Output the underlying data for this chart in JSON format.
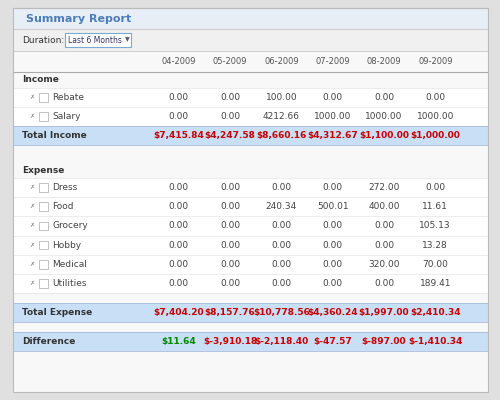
{
  "title": "Summary Report",
  "duration_label": "Duration:",
  "duration_value": "Last 6 Months",
  "months": [
    "04-2009",
    "05-2009",
    "06-2009",
    "07-2009",
    "08-2009",
    "09-2009"
  ],
  "income_items": [
    {
      "name": "Rebate",
      "values": [
        "0.00",
        "0.00",
        "100.00",
        "0.00",
        "0.00",
        "0.00"
      ]
    },
    {
      "name": "Salary",
      "values": [
        "0.00",
        "0.00",
        "4212.66",
        "1000.00",
        "1000.00",
        "1000.00"
      ]
    }
  ],
  "total_income": {
    "label": "Total Income",
    "values": [
      "$7,415.84",
      "$4,247.58",
      "$8,660.16",
      "$4,312.67",
      "$1,100.00",
      "$1,000.00"
    ]
  },
  "expense_items": [
    {
      "name": "Dress",
      "values": [
        "0.00",
        "0.00",
        "0.00",
        "0.00",
        "272.00",
        "0.00"
      ]
    },
    {
      "name": "Food",
      "values": [
        "0.00",
        "0.00",
        "240.34",
        "500.01",
        "400.00",
        "11.61"
      ]
    },
    {
      "name": "Grocery",
      "values": [
        "0.00",
        "0.00",
        "0.00",
        "0.00",
        "0.00",
        "105.13"
      ]
    },
    {
      "name": "Hobby",
      "values": [
        "0.00",
        "0.00",
        "0.00",
        "0.00",
        "0.00",
        "13.28"
      ]
    },
    {
      "name": "Medical",
      "values": [
        "0.00",
        "0.00",
        "0.00",
        "0.00",
        "320.00",
        "70.00"
      ]
    },
    {
      "name": "Utilities",
      "values": [
        "0.00",
        "0.00",
        "0.00",
        "0.00",
        "0.00",
        "189.41"
      ]
    }
  ],
  "total_expense": {
    "label": "Total Expense",
    "values": [
      "$7,404.20",
      "$8,157.76",
      "$10,778.56",
      "$4,360.24",
      "$1,997.00",
      "$2,410.34"
    ]
  },
  "difference": {
    "label": "Difference",
    "values": [
      "$11.64",
      "$-3,910.18",
      "$-2,118.40",
      "$-47.57",
      "$-897.00",
      "$-1,410.34"
    ]
  },
  "outer_bg": "#e0e0e0",
  "inner_bg": "#ffffff",
  "title_bar_bg": "#e8eef5",
  "title_color": "#4a7eba",
  "dur_bar_bg": "#f0f0f0",
  "hdr_bg": "#f8f8f8",
  "total_row_bg": "#c8dff5",
  "total_label_color": "#333333",
  "total_val_color": "#cc0000",
  "diff_pos_color": "#008800",
  "diff_neg_color": "#cc0000",
  "section_color": "#333333",
  "row_text_color": "#444444",
  "month_color": "#555555",
  "border_color": "#cccccc",
  "check_color": "#888888"
}
